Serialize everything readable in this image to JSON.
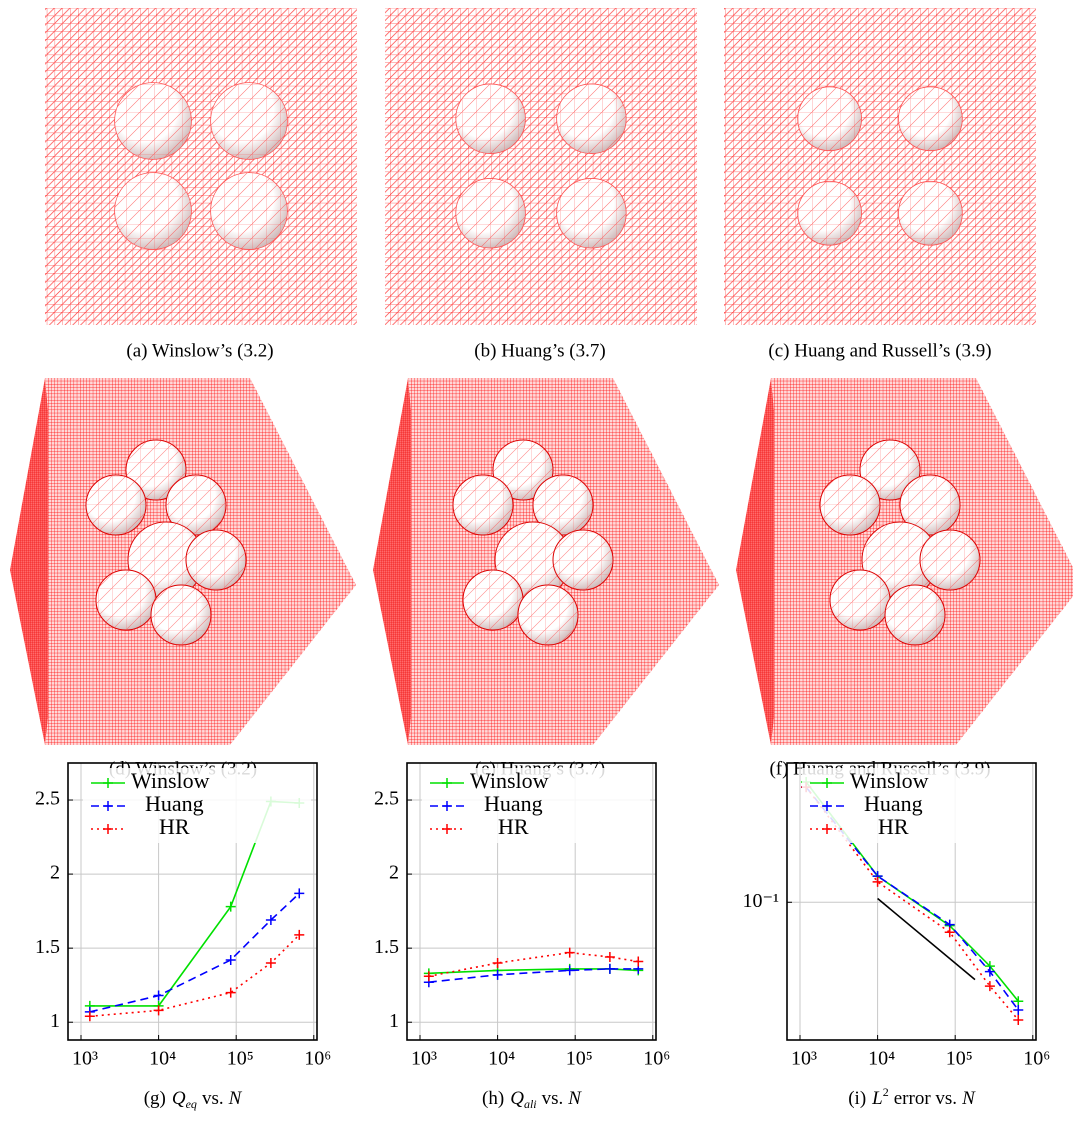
{
  "panels": [
    {
      "caption": "(a)  Winslow’s (3.2)"
    },
    {
      "caption": "(b)  Huang’s (3.7)"
    },
    {
      "caption": "(c)  Huang and Russell’s (3.9)"
    },
    {
      "caption": "(d)  Winslow’s (3.2)"
    },
    {
      "caption": "(e)  Huang’s (3.7)"
    },
    {
      "caption": "(f)  Huang and Russell’s (3.9)"
    }
  ],
  "chart_data": [
    {
      "type": "line",
      "caption": {
        "label": "(g)",
        "symbol": "Q",
        "subscript": "eq",
        "text": "vs.",
        "variable": "N"
      },
      "xlog": true,
      "ylog": false,
      "grid": true,
      "legend": "upper right",
      "xlim": [
        680,
        1100000
      ],
      "xticks": [
        {
          "value": 1000,
          "label": "10³"
        },
        {
          "value": 10000,
          "label": "10⁴"
        },
        {
          "value": 100000,
          "label": "10⁵"
        },
        {
          "value": 1000000,
          "label": "10⁶"
        }
      ],
      "ylim": [
        0.88,
        2.75
      ],
      "yticks": [
        1,
        1.5,
        2,
        2.5
      ],
      "series": [
        {
          "name": "Winslow",
          "color": "#00e000",
          "dash": "solid",
          "marker": "+",
          "x": [
            1300,
            10000,
            85000,
            280000,
            650000
          ],
          "values": [
            1.11,
            1.11,
            1.78,
            2.49,
            2.48
          ]
        },
        {
          "name": "Huang",
          "color": "#0000ff",
          "dash": "dashed",
          "marker": "+",
          "x": [
            1300,
            10000,
            85000,
            280000,
            650000
          ],
          "values": [
            1.07,
            1.18,
            1.42,
            1.69,
            1.87
          ]
        },
        {
          "name": "HR",
          "color": "#ff0000",
          "dash": "dotted",
          "marker": "+",
          "x": [
            1300,
            10000,
            85000,
            280000,
            650000
          ],
          "values": [
            1.04,
            1.08,
            1.2,
            1.4,
            1.59
          ]
        }
      ]
    },
    {
      "type": "line",
      "caption": {
        "label": "(h)",
        "symbol": "Q",
        "subscript": "ali",
        "text": "vs.",
        "variable": "N"
      },
      "xlog": true,
      "ylog": false,
      "grid": true,
      "legend": "upper right",
      "xlim": [
        680,
        1100000
      ],
      "xticks": [
        {
          "value": 1000,
          "label": "10³"
        },
        {
          "value": 10000,
          "label": "10⁴"
        },
        {
          "value": 100000,
          "label": "10⁵"
        },
        {
          "value": 1000000,
          "label": "10⁶"
        }
      ],
      "ylim": [
        0.88,
        2.75
      ],
      "yticks": [
        1,
        1.5,
        2,
        2.5
      ],
      "series": [
        {
          "name": "Winslow",
          "color": "#00e000",
          "dash": "solid",
          "marker": "+",
          "x": [
            1300,
            10000,
            85000,
            280000,
            650000
          ],
          "values": [
            1.33,
            1.35,
            1.36,
            1.36,
            1.35
          ]
        },
        {
          "name": "Huang",
          "color": "#0000ff",
          "dash": "dashed",
          "marker": "+",
          "x": [
            1300,
            10000,
            85000,
            280000,
            650000
          ],
          "values": [
            1.27,
            1.32,
            1.35,
            1.36,
            1.36
          ]
        },
        {
          "name": "HR",
          "color": "#ff0000",
          "dash": "dotted",
          "marker": "+",
          "x": [
            1300,
            10000,
            85000,
            280000,
            650000
          ],
          "values": [
            1.31,
            1.4,
            1.47,
            1.44,
            1.41
          ]
        }
      ]
    },
    {
      "type": "line",
      "caption": {
        "label": "(i)",
        "symbol": "L",
        "superscript": "2",
        "text": "error vs.",
        "variable": "N"
      },
      "xlog": true,
      "ylog": true,
      "grid": true,
      "legend": "upper right",
      "xlim": [
        680,
        1100000
      ],
      "xticks": [
        {
          "value": 1000,
          "label": "10³"
        },
        {
          "value": 10000,
          "label": "10⁴"
        },
        {
          "value": 100000,
          "label": "10⁵"
        },
        {
          "value": 1000000,
          "label": "10⁶"
        }
      ],
      "ylim": [
        0.017,
        0.6
      ],
      "yticks": [
        {
          "value": 0.1,
          "label": "10⁻¹"
        }
      ],
      "series": [
        {
          "name": "Winslow",
          "color": "#00e000",
          "dash": "solid",
          "marker": "+",
          "x": [
            1200,
            10000,
            85000,
            280000,
            650000
          ],
          "values": [
            0.47,
            0.14,
            0.074,
            0.044,
            0.028
          ]
        },
        {
          "name": "Huang",
          "color": "#0000ff",
          "dash": "dashed",
          "marker": "+",
          "x": [
            1200,
            10000,
            85000,
            280000,
            650000
          ],
          "values": [
            0.44,
            0.14,
            0.075,
            0.041,
            0.025
          ]
        },
        {
          "name": "HR",
          "color": "#ff0000",
          "dash": "dotted",
          "marker": "+",
          "x": [
            1200,
            10000,
            85000,
            280000,
            650000
          ],
          "values": [
            0.44,
            0.13,
            0.068,
            0.034,
            0.022
          ]
        },
        {
          "color": "#000000",
          "dash": "solid",
          "marker": "none",
          "x": [
            10000,
            180000
          ],
          "values": [
            0.105,
            0.037
          ]
        }
      ]
    }
  ]
}
